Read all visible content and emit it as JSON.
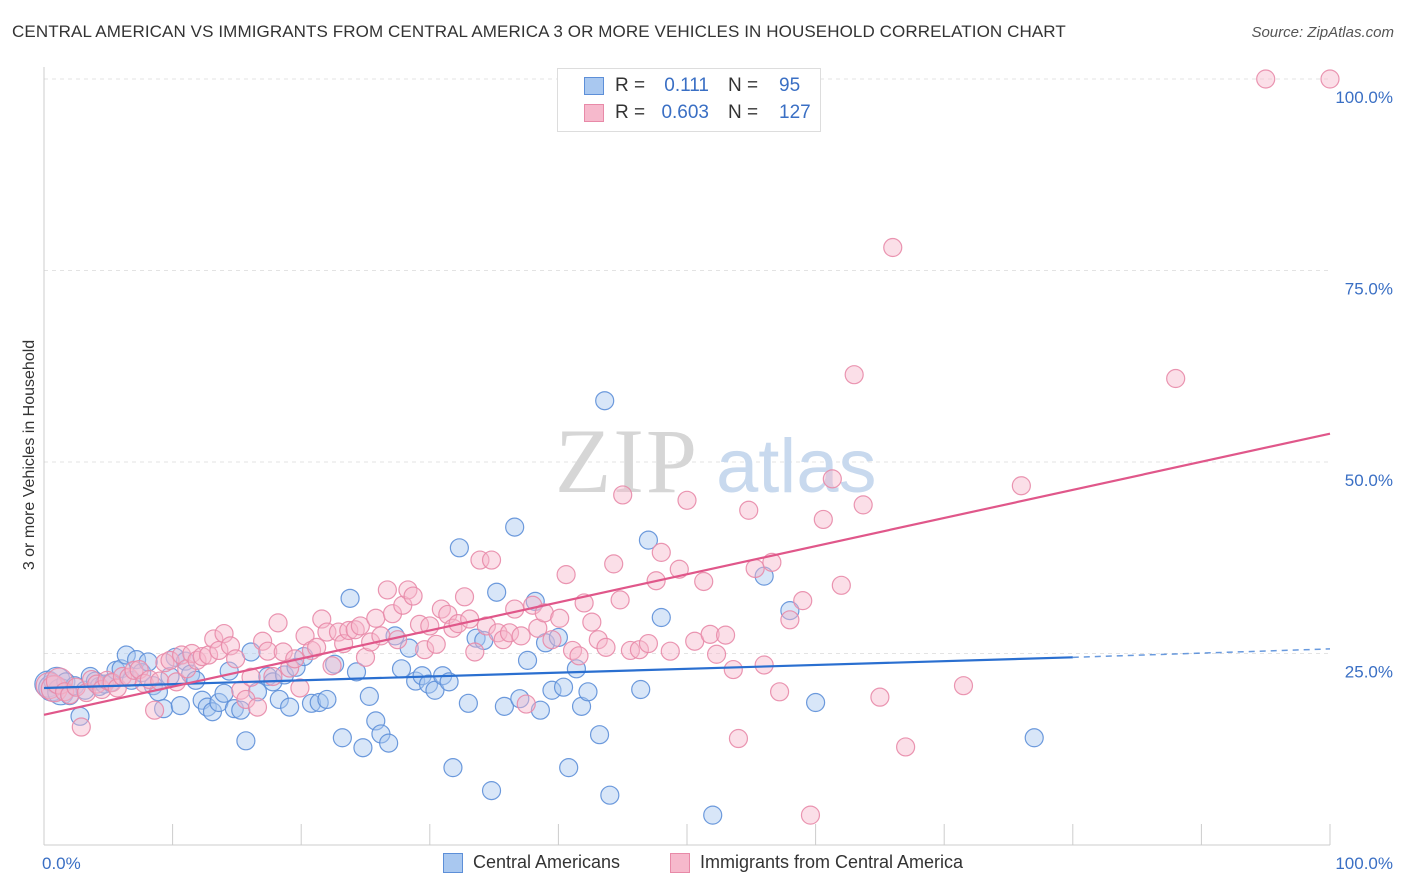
{
  "title": "CENTRAL AMERICAN VS IMMIGRANTS FROM CENTRAL AMERICA 3 OR MORE VEHICLES IN HOUSEHOLD CORRELATION CHART",
  "source": "Source: ZipAtlas.com",
  "watermark": {
    "zip": "ZIP",
    "atlas": "atlas"
  },
  "colors": {
    "blue_fill": "#a9c8f0",
    "blue_stroke": "#5d8fd8",
    "blue_line": "#2a6fd0",
    "pink_fill": "#f6b9cc",
    "pink_stroke": "#e88aa8",
    "pink_line": "#e0578a",
    "axis_label": "#3a6fc4",
    "grid": "#e3e3e3"
  },
  "legend": {
    "rows": [
      {
        "r_label": "R =",
        "r_value": "0.111",
        "n_label": "N =",
        "n_value": "95"
      },
      {
        "r_label": "R =",
        "r_value": "0.603",
        "n_label": "N =",
        "n_value": "127"
      }
    ]
  },
  "bottom_legend": [
    "Central Americans",
    "Immigrants from Central America"
  ],
  "chart_data": {
    "type": "scatter",
    "title": "CENTRAL AMERICAN VS IMMIGRANTS FROM CENTRAL AMERICA 3 OR MORE VEHICLES IN HOUSEHOLD CORRELATION CHART",
    "xlabel": "",
    "ylabel": "3 or more Vehicles in Household",
    "xlim": [
      0,
      100
    ],
    "ylim": [
      0,
      100
    ],
    "x_tick_labels": [
      "0.0%",
      "100.0%"
    ],
    "y_tick_labels": [
      "25.0%",
      "50.0%",
      "75.0%",
      "100.0%"
    ],
    "y_ticks": [
      25,
      50,
      75,
      100
    ],
    "grid": true,
    "legend_position": "top-center",
    "series": [
      {
        "name": "Central Americans",
        "r": 0.111,
        "n": 95,
        "trend": {
          "x0": 0,
          "y0": 20.5,
          "x1": 80,
          "y1": 24.5,
          "dashed_to_x": 100,
          "dashed_y": 25.6
        },
        "points": [
          [
            0.3,
            21
          ],
          [
            0.6,
            20.5
          ],
          [
            1,
            21.5
          ],
          [
            1.3,
            20
          ],
          [
            1.7,
            21.3
          ],
          [
            2,
            19.5
          ],
          [
            2.4,
            20.8
          ],
          [
            2.8,
            16.8
          ],
          [
            3.2,
            20.2
          ],
          [
            3.6,
            22
          ],
          [
            4,
            21.4
          ],
          [
            4.3,
            20.7
          ],
          [
            4.7,
            21
          ],
          [
            5.2,
            21.2
          ],
          [
            5.6,
            22.8
          ],
          [
            6,
            23
          ],
          [
            6.4,
            24.8
          ],
          [
            6.8,
            21.5
          ],
          [
            7.2,
            24.2
          ],
          [
            7.6,
            22.5
          ],
          [
            8.1,
            23.9
          ],
          [
            8.5,
            20.8
          ],
          [
            8.9,
            20
          ],
          [
            9.3,
            17.8
          ],
          [
            9.8,
            22
          ],
          [
            10.2,
            24.5
          ],
          [
            10.6,
            18.2
          ],
          [
            11,
            24
          ],
          [
            11.4,
            22.3
          ],
          [
            11.8,
            21.5
          ],
          [
            12.3,
            18.9
          ],
          [
            12.7,
            18
          ],
          [
            13.1,
            17.4
          ],
          [
            13.6,
            18.6
          ],
          [
            14,
            19.8
          ],
          [
            14.4,
            22.7
          ],
          [
            14.8,
            17.8
          ],
          [
            15.3,
            17.6
          ],
          [
            15.7,
            13.6
          ],
          [
            16.1,
            25.2
          ],
          [
            16.6,
            20
          ],
          [
            17.4,
            22
          ],
          [
            17.8,
            21.3
          ],
          [
            18.3,
            19
          ],
          [
            18.7,
            22.2
          ],
          [
            19.1,
            18
          ],
          [
            19.6,
            23.2
          ],
          [
            20.2,
            24.6
          ],
          [
            20.8,
            18.5
          ],
          [
            21.4,
            18.6
          ],
          [
            22,
            19
          ],
          [
            22.6,
            23.6
          ],
          [
            23.2,
            14
          ],
          [
            23.8,
            32.2
          ],
          [
            24.3,
            22.6
          ],
          [
            24.8,
            12.7
          ],
          [
            25.3,
            19.4
          ],
          [
            25.8,
            16.2
          ],
          [
            26.2,
            14.5
          ],
          [
            26.8,
            13.3
          ],
          [
            27.3,
            27.3
          ],
          [
            27.8,
            23
          ],
          [
            28.4,
            25.7
          ],
          [
            28.9,
            21.4
          ],
          [
            29.4,
            22.1
          ],
          [
            29.9,
            21
          ],
          [
            30.4,
            20.2
          ],
          [
            31,
            22.1
          ],
          [
            31.5,
            21.3
          ],
          [
            31.8,
            10.1
          ],
          [
            32.3,
            38.8
          ],
          [
            33,
            18.5
          ],
          [
            33.6,
            27
          ],
          [
            34.2,
            26.7
          ],
          [
            34.8,
            7.1
          ],
          [
            35.2,
            33
          ],
          [
            35.8,
            18.1
          ],
          [
            36.6,
            41.5
          ],
          [
            37,
            19.1
          ],
          [
            37.6,
            24.1
          ],
          [
            38.2,
            31.8
          ],
          [
            38.6,
            17.6
          ],
          [
            39,
            26.4
          ],
          [
            39.5,
            20.2
          ],
          [
            40,
            27.1
          ],
          [
            40.4,
            20.6
          ],
          [
            40.8,
            10.1
          ],
          [
            41.4,
            23
          ],
          [
            41.8,
            18.1
          ],
          [
            42.3,
            20
          ],
          [
            43.2,
            14.4
          ],
          [
            43.6,
            58
          ],
          [
            44,
            6.5
          ],
          [
            46.4,
            20.3
          ],
          [
            47,
            39.8
          ],
          [
            48,
            29.7
          ],
          [
            52,
            3.9
          ],
          [
            56,
            35.1
          ],
          [
            58,
            30.6
          ],
          [
            60,
            18.6
          ],
          [
            77,
            14
          ]
        ]
      },
      {
        "name": "Immigrants from Central America",
        "r": 0.603,
        "n": 127,
        "trend": {
          "x0": 0,
          "y0": 17,
          "x1": 100,
          "y1": 53.7
        },
        "points": [
          [
            0.4,
            20.8
          ],
          [
            0.8,
            20.4
          ],
          [
            1.2,
            21.4
          ],
          [
            1.6,
            20
          ],
          [
            2,
            19.6
          ],
          [
            2.5,
            20.6
          ],
          [
            2.9,
            15.4
          ],
          [
            3.3,
            19.9
          ],
          [
            3.7,
            21.6
          ],
          [
            4.1,
            21
          ],
          [
            4.5,
            20.3
          ],
          [
            4.9,
            21.5
          ],
          [
            5.3,
            21.2
          ],
          [
            5.7,
            20.5
          ],
          [
            6.1,
            22
          ],
          [
            6.6,
            21.9
          ],
          [
            7,
            22.8
          ],
          [
            7.4,
            22.9
          ],
          [
            7.8,
            21.1
          ],
          [
            8.2,
            21.6
          ],
          [
            8.6,
            17.6
          ],
          [
            9,
            21.4
          ],
          [
            9.4,
            23.8
          ],
          [
            9.8,
            24.1
          ],
          [
            10.3,
            21.3
          ],
          [
            10.7,
            24.8
          ],
          [
            11.1,
            23
          ],
          [
            11.5,
            25
          ],
          [
            11.9,
            24.1
          ],
          [
            12.3,
            24.6
          ],
          [
            12.8,
            24.8
          ],
          [
            13.2,
            26.9
          ],
          [
            13.6,
            25.4
          ],
          [
            14,
            27.6
          ],
          [
            14.5,
            26
          ],
          [
            14.9,
            24.3
          ],
          [
            15.3,
            20.2
          ],
          [
            15.7,
            19
          ],
          [
            16.1,
            21.9
          ],
          [
            16.6,
            18
          ],
          [
            17,
            26.6
          ],
          [
            17.4,
            25.3
          ],
          [
            17.8,
            22
          ],
          [
            18.2,
            29
          ],
          [
            18.6,
            25.2
          ],
          [
            19.1,
            23.1
          ],
          [
            19.5,
            24.3
          ],
          [
            19.9,
            20.5
          ],
          [
            20.3,
            27.3
          ],
          [
            20.8,
            25.4
          ],
          [
            21.2,
            25.8
          ],
          [
            21.6,
            29.5
          ],
          [
            22,
            27.8
          ],
          [
            22.4,
            23.4
          ],
          [
            22.9,
            27.8
          ],
          [
            23.3,
            26.3
          ],
          [
            23.7,
            28
          ],
          [
            24.2,
            28.1
          ],
          [
            24.6,
            28.6
          ],
          [
            25,
            24.5
          ],
          [
            25.4,
            26.5
          ],
          [
            25.8,
            29.6
          ],
          [
            26.2,
            27.3
          ],
          [
            26.7,
            33.3
          ],
          [
            27.1,
            30.2
          ],
          [
            27.5,
            26.8
          ],
          [
            27.9,
            31.3
          ],
          [
            28.3,
            33.3
          ],
          [
            28.7,
            32.5
          ],
          [
            29.2,
            28.8
          ],
          [
            29.6,
            25.5
          ],
          [
            30,
            28.6
          ],
          [
            30.5,
            26.2
          ],
          [
            30.9,
            30.8
          ],
          [
            31.4,
            30.1
          ],
          [
            31.8,
            28.3
          ],
          [
            32.2,
            28.9
          ],
          [
            32.7,
            32.4
          ],
          [
            33.1,
            29.5
          ],
          [
            33.5,
            25.2
          ],
          [
            33.9,
            37.2
          ],
          [
            34.4,
            28.6
          ],
          [
            34.8,
            37.2
          ],
          [
            35.3,
            27.7
          ],
          [
            35.7,
            26.8
          ],
          [
            36.2,
            27.7
          ],
          [
            36.6,
            30.8
          ],
          [
            37.1,
            27.3
          ],
          [
            37.5,
            18.4
          ],
          [
            38,
            31.3
          ],
          [
            38.4,
            28.3
          ],
          [
            38.9,
            30.3
          ],
          [
            39.5,
            26.8
          ],
          [
            40.1,
            29.6
          ],
          [
            40.6,
            35.3
          ],
          [
            41.1,
            25.4
          ],
          [
            41.6,
            24.7
          ],
          [
            42,
            31.6
          ],
          [
            42.6,
            29.1
          ],
          [
            43.1,
            26.8
          ],
          [
            43.7,
            25.8
          ],
          [
            44.3,
            36.7
          ],
          [
            44.8,
            32
          ],
          [
            45,
            45.7
          ],
          [
            45.6,
            25.4
          ],
          [
            46.3,
            25.5
          ],
          [
            47,
            26.3
          ],
          [
            47.6,
            34.5
          ],
          [
            48,
            38.2
          ],
          [
            48.7,
            25.3
          ],
          [
            49.4,
            36
          ],
          [
            50,
            45
          ],
          [
            50.6,
            26.6
          ],
          [
            51.3,
            34.4
          ],
          [
            51.8,
            27.5
          ],
          [
            52.3,
            24.9
          ],
          [
            53,
            27.4
          ],
          [
            53.6,
            22.9
          ],
          [
            54,
            13.9
          ],
          [
            54.8,
            43.7
          ],
          [
            55.3,
            36.1
          ],
          [
            56,
            23.5
          ],
          [
            56.6,
            36.9
          ],
          [
            57.2,
            20
          ],
          [
            58,
            29.4
          ],
          [
            59,
            31.9
          ],
          [
            59.6,
            3.9
          ],
          [
            60.6,
            42.5
          ],
          [
            61.3,
            47.8
          ],
          [
            62,
            33.9
          ],
          [
            63,
            61.4
          ],
          [
            63.7,
            44.4
          ],
          [
            65,
            19.3
          ],
          [
            66,
            78
          ],
          [
            67,
            12.8
          ],
          [
            71.5,
            20.8
          ],
          [
            76,
            46.9
          ],
          [
            88,
            60.9
          ],
          [
            95,
            100
          ],
          [
            100,
            100
          ]
        ]
      }
    ]
  }
}
